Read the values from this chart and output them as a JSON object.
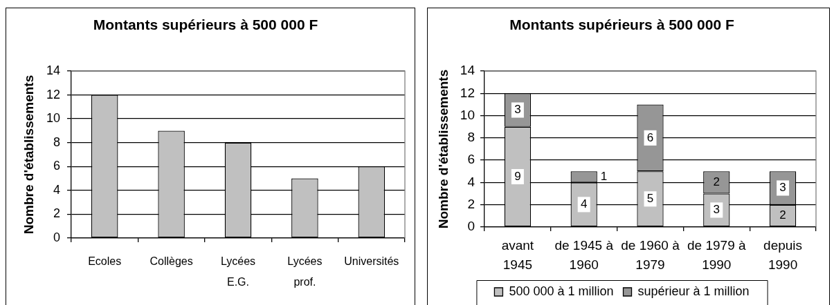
{
  "chart_data": [
    {
      "type": "bar",
      "title": "Montants supérieurs à 500 000 F",
      "ylabel": "Nombre d'établissements",
      "categories": [
        "Ecoles",
        "Collèges",
        "Lycées E.G.",
        "Lycées prof.",
        "Universités"
      ],
      "values": [
        12,
        9,
        8,
        5,
        6
      ],
      "color": "#c0c0c0",
      "ylim": [
        0,
        14
      ],
      "yticks": [
        0,
        2,
        4,
        6,
        8,
        10,
        12,
        14
      ],
      "grid": "y"
    },
    {
      "type": "bar",
      "title": "Montants supérieurs à 500 000 F",
      "ylabel": "Nombre d'établissements",
      "categories": [
        "avant 1945",
        "de 1945 à 1960",
        "de 1960 à 1979",
        "de 1979 à 1990",
        "depuis 1990"
      ],
      "stacked": true,
      "series": [
        {
          "name": "500 000 à 1 million",
          "color": "#c0c0c0",
          "values": [
            9,
            4,
            5,
            3,
            2
          ]
        },
        {
          "name": "supérieur à 1 million",
          "color": "#969696",
          "values": [
            3,
            1,
            6,
            2,
            3
          ]
        }
      ],
      "ylim": [
        0,
        14
      ],
      "yticks": [
        0,
        2,
        4,
        6,
        8,
        10,
        12,
        14
      ],
      "grid": "y",
      "legend": "bottom",
      "data_labels": true
    }
  ]
}
